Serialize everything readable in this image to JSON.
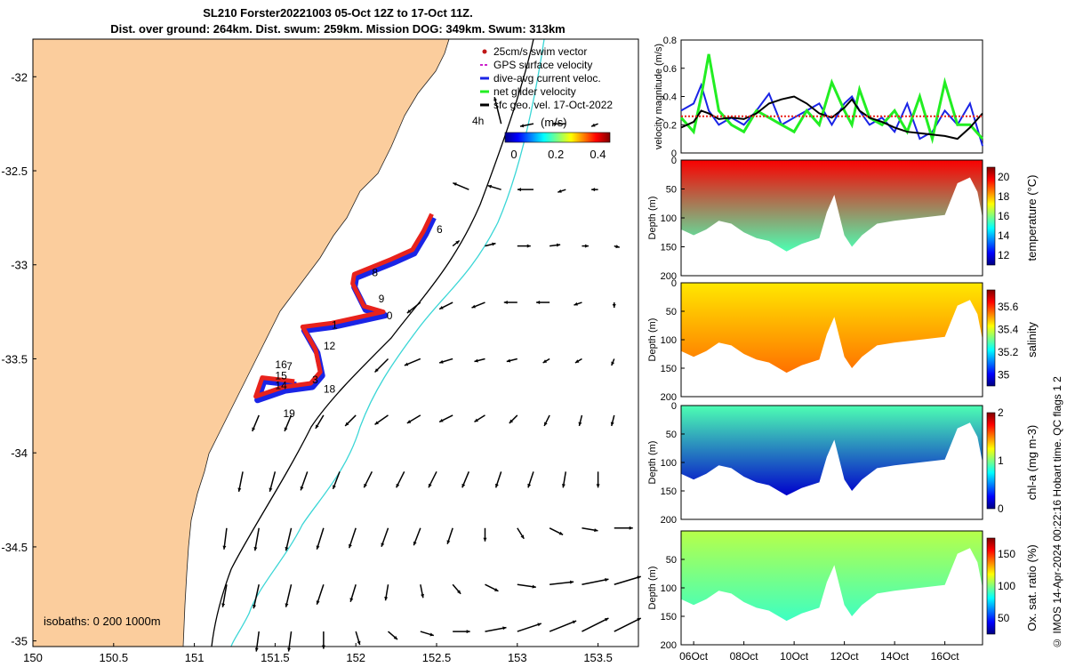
{
  "title_line1": "SL210 Forster20221003 05-Oct 12Z to 17-Oct 11Z.",
  "title_line2": "Dist. over ground: 264km. Dist. swum: 259km. Mission DOG: 349km. Swum: 313km",
  "stamp": "© IMOS 14-Apr-2024 00:22:16 Hobart time. QC flags 1  2",
  "colors": {
    "land": "#fbcd9d",
    "glider_red": "#e8221c",
    "glider_blue": "#1a24e6",
    "isobath": "#000000",
    "cyan": "#3ad6d6",
    "velocity_green": "#22ee22",
    "gps": "#cc22cc"
  },
  "chart_data": [
    {
      "type": "map",
      "xlim": [
        150,
        153.75
      ],
      "ylim": [
        -35.03,
        -31.8
      ],
      "xticks": [
        "150",
        "150.5",
        "151",
        "151.5",
        "152",
        "152.5",
        "153",
        "153.5"
      ],
      "yticks": [
        "-32",
        "-32.5",
        "-33",
        "-33.5",
        "-34",
        "-34.5",
        "-35"
      ],
      "legend": [
        "25cm/s swim vector",
        "GPS surface velocity",
        "dive-avg current veloc.",
        "net glider velocity",
        "sfc geo. vel. 17-Oct-2022"
      ],
      "legend_extra": "4h",
      "colorbar": {
        "label": "(m/s)",
        "ticks": [
          "0",
          "0.2",
          "0.4"
        ],
        "range": [
          0,
          0.5
        ]
      },
      "isobath_label": "isobaths: 0   200   1000m",
      "glider_track_red": [
        [
          152.17,
          -33.25
        ],
        [
          151.85,
          -33.31
        ],
        [
          151.67,
          -33.33
        ],
        [
          151.75,
          -33.45
        ],
        [
          151.78,
          -33.57
        ],
        [
          151.72,
          -33.63
        ],
        [
          151.55,
          -33.65
        ],
        [
          151.38,
          -33.7
        ],
        [
          151.42,
          -33.6
        ],
        [
          151.62,
          -33.62
        ]
      ],
      "glider_track_north_red": [
        [
          152.17,
          -33.25
        ],
        [
          152.05,
          -33.22
        ],
        [
          151.98,
          -33.1
        ],
        [
          151.99,
          -33.05
        ],
        [
          152.22,
          -32.97
        ],
        [
          152.35,
          -32.92
        ],
        [
          152.42,
          -32.82
        ],
        [
          152.47,
          -32.73
        ]
      ],
      "day_labels": [
        {
          "t": "6",
          "x": 152.5,
          "y": -32.83
        },
        {
          "t": "8",
          "x": 152.1,
          "y": -33.06
        },
        {
          "t": "9",
          "x": 152.14,
          "y": -33.2
        },
        {
          "t": "0",
          "x": 152.19,
          "y": -33.29
        },
        {
          "t": "1",
          "x": 151.85,
          "y": -33.34
        },
        {
          "t": "12",
          "x": 151.8,
          "y": -33.45
        },
        {
          "t": "16",
          "x": 151.5,
          "y": -33.55
        },
        {
          "t": "7",
          "x": 151.57,
          "y": -33.56
        },
        {
          "t": "15",
          "x": 151.5,
          "y": -33.61
        },
        {
          "t": "3",
          "x": 151.73,
          "y": -33.63
        },
        {
          "t": "14",
          "x": 151.5,
          "y": -33.66
        },
        {
          "t": "18",
          "x": 151.8,
          "y": -33.68
        },
        {
          "t": "19",
          "x": 151.55,
          "y": -33.81
        }
      ],
      "velocity_arrows": [
        {
          "lon": 152.9,
          "lat": -32.25,
          "u": -0.05,
          "v": 0.2
        },
        {
          "lon": 153.1,
          "lat": -32.25,
          "u": -0.1,
          "v": -0.02
        },
        {
          "lon": 153.3,
          "lat": -32.25,
          "u": -0.1,
          "v": 0.0
        },
        {
          "lon": 153.5,
          "lat": -32.25,
          "u": -0.05,
          "v": -0.02
        },
        {
          "lon": 152.7,
          "lat": -32.6,
          "u": -0.12,
          "v": 0.05
        },
        {
          "lon": 152.9,
          "lat": -32.6,
          "u": -0.1,
          "v": 0.03
        },
        {
          "lon": 153.1,
          "lat": -32.6,
          "u": -0.12,
          "v": 0.0
        },
        {
          "lon": 153.3,
          "lat": -32.6,
          "u": -0.06,
          "v": -0.02
        },
        {
          "lon": 153.5,
          "lat": -32.6,
          "u": -0.05,
          "v": 0.0
        },
        {
          "lon": 152.6,
          "lat": -32.9,
          "u": 0.05,
          "v": 0.04
        },
        {
          "lon": 152.8,
          "lat": -32.9,
          "u": 0.08,
          "v": 0.02
        },
        {
          "lon": 153.0,
          "lat": -32.9,
          "u": 0.1,
          "v": 0.0
        },
        {
          "lon": 153.2,
          "lat": -32.9,
          "u": 0.08,
          "v": 0.01
        },
        {
          "lon": 153.4,
          "lat": -32.9,
          "u": 0.05,
          "v": 0.0
        },
        {
          "lon": 153.6,
          "lat": -32.9,
          "u": 0.04,
          "v": -0.01
        },
        {
          "lon": 152.4,
          "lat": -33.2,
          "u": -0.1,
          "v": -0.08
        },
        {
          "lon": 152.6,
          "lat": -33.2,
          "u": -0.1,
          "v": -0.05
        },
        {
          "lon": 152.8,
          "lat": -33.2,
          "u": -0.1,
          "v": -0.04
        },
        {
          "lon": 153.0,
          "lat": -33.2,
          "u": -0.1,
          "v": 0.0
        },
        {
          "lon": 153.2,
          "lat": -33.2,
          "u": -0.1,
          "v": 0.0
        },
        {
          "lon": 153.4,
          "lat": -33.2,
          "u": -0.06,
          "v": -0.02
        },
        {
          "lon": 153.6,
          "lat": -33.2,
          "u": 0.0,
          "v": -0.04
        },
        {
          "lon": 152.2,
          "lat": -33.5,
          "u": -0.1,
          "v": -0.1
        },
        {
          "lon": 152.4,
          "lat": -33.5,
          "u": -0.12,
          "v": -0.05
        },
        {
          "lon": 152.6,
          "lat": -33.5,
          "u": -0.1,
          "v": -0.03
        },
        {
          "lon": 152.8,
          "lat": -33.5,
          "u": -0.08,
          "v": -0.02
        },
        {
          "lon": 153.0,
          "lat": -33.5,
          "u": -0.08,
          "v": -0.02
        },
        {
          "lon": 153.2,
          "lat": -33.5,
          "u": -0.05,
          "v": -0.03
        },
        {
          "lon": 153.4,
          "lat": -33.5,
          "u": -0.05,
          "v": -0.03
        },
        {
          "lon": 153.6,
          "lat": -33.5,
          "u": -0.02,
          "v": -0.05
        },
        {
          "lon": 151.4,
          "lat": -33.8,
          "u": -0.05,
          "v": -0.12
        },
        {
          "lon": 151.6,
          "lat": -33.8,
          "u": -0.05,
          "v": -0.12
        },
        {
          "lon": 151.8,
          "lat": -33.8,
          "u": -0.06,
          "v": -0.1
        },
        {
          "lon": 152.0,
          "lat": -33.8,
          "u": -0.08,
          "v": -0.08
        },
        {
          "lon": 152.2,
          "lat": -33.8,
          "u": -0.1,
          "v": -0.07
        },
        {
          "lon": 152.4,
          "lat": -33.8,
          "u": -0.1,
          "v": -0.06
        },
        {
          "lon": 152.6,
          "lat": -33.8,
          "u": -0.1,
          "v": -0.05
        },
        {
          "lon": 152.8,
          "lat": -33.8,
          "u": -0.08,
          "v": -0.05
        },
        {
          "lon": 153.0,
          "lat": -33.8,
          "u": -0.06,
          "v": -0.06
        },
        {
          "lon": 153.2,
          "lat": -33.8,
          "u": -0.04,
          "v": -0.08
        },
        {
          "lon": 153.4,
          "lat": -33.8,
          "u": -0.02,
          "v": -0.08
        },
        {
          "lon": 153.6,
          "lat": -33.8,
          "u": -0.02,
          "v": -0.08
        },
        {
          "lon": 151.3,
          "lat": -34.1,
          "u": -0.03,
          "v": -0.15
        },
        {
          "lon": 151.5,
          "lat": -34.1,
          "u": -0.04,
          "v": -0.15
        },
        {
          "lon": 151.7,
          "lat": -34.1,
          "u": -0.05,
          "v": -0.14
        },
        {
          "lon": 151.9,
          "lat": -34.1,
          "u": -0.05,
          "v": -0.13
        },
        {
          "lon": 152.1,
          "lat": -34.1,
          "u": -0.06,
          "v": -0.12
        },
        {
          "lon": 152.3,
          "lat": -34.1,
          "u": -0.06,
          "v": -0.12
        },
        {
          "lon": 152.5,
          "lat": -34.1,
          "u": -0.06,
          "v": -0.12
        },
        {
          "lon": 152.7,
          "lat": -34.1,
          "u": -0.05,
          "v": -0.12
        },
        {
          "lon": 152.9,
          "lat": -34.1,
          "u": -0.04,
          "v": -0.12
        },
        {
          "lon": 153.1,
          "lat": -34.1,
          "u": -0.04,
          "v": -0.12
        },
        {
          "lon": 153.3,
          "lat": -34.1,
          "u": -0.02,
          "v": -0.12
        },
        {
          "lon": 153.5,
          "lat": -34.1,
          "u": 0.0,
          "v": -0.12
        },
        {
          "lon": 151.2,
          "lat": -34.4,
          "u": -0.02,
          "v": -0.16
        },
        {
          "lon": 151.4,
          "lat": -34.4,
          "u": -0.03,
          "v": -0.17
        },
        {
          "lon": 151.6,
          "lat": -34.4,
          "u": -0.04,
          "v": -0.17
        },
        {
          "lon": 151.8,
          "lat": -34.4,
          "u": -0.05,
          "v": -0.16
        },
        {
          "lon": 152.0,
          "lat": -34.4,
          "u": -0.05,
          "v": -0.15
        },
        {
          "lon": 152.2,
          "lat": -34.4,
          "u": -0.05,
          "v": -0.14
        },
        {
          "lon": 152.4,
          "lat": -34.4,
          "u": -0.05,
          "v": -0.13
        },
        {
          "lon": 152.6,
          "lat": -34.4,
          "u": -0.04,
          "v": -0.12
        },
        {
          "lon": 152.8,
          "lat": -34.4,
          "u": 0.0,
          "v": -0.1
        },
        {
          "lon": 153.0,
          "lat": -34.4,
          "u": 0.05,
          "v": -0.08
        },
        {
          "lon": 153.2,
          "lat": -34.4,
          "u": 0.1,
          "v": -0.05
        },
        {
          "lon": 153.4,
          "lat": -34.4,
          "u": 0.12,
          "v": -0.02
        },
        {
          "lon": 153.6,
          "lat": -34.4,
          "u": 0.14,
          "v": 0.0
        },
        {
          "lon": 151.2,
          "lat": -34.7,
          "u": -0.03,
          "v": -0.17
        },
        {
          "lon": 151.4,
          "lat": -34.7,
          "u": -0.04,
          "v": -0.18
        },
        {
          "lon": 151.6,
          "lat": -34.7,
          "u": -0.04,
          "v": -0.17
        },
        {
          "lon": 151.8,
          "lat": -34.7,
          "u": -0.05,
          "v": -0.15
        },
        {
          "lon": 152.0,
          "lat": -34.7,
          "u": -0.04,
          "v": -0.13
        },
        {
          "lon": 152.2,
          "lat": -34.7,
          "u": -0.02,
          "v": -0.12
        },
        {
          "lon": 152.4,
          "lat": -34.7,
          "u": 0.02,
          "v": -0.1
        },
        {
          "lon": 152.6,
          "lat": -34.7,
          "u": 0.06,
          "v": -0.07
        },
        {
          "lon": 152.8,
          "lat": -34.7,
          "u": 0.1,
          "v": -0.05
        },
        {
          "lon": 153.0,
          "lat": -34.7,
          "u": 0.14,
          "v": -0.02
        },
        {
          "lon": 153.2,
          "lat": -34.7,
          "u": 0.18,
          "v": 0.02
        },
        {
          "lon": 153.4,
          "lat": -34.7,
          "u": 0.2,
          "v": 0.04
        },
        {
          "lon": 153.6,
          "lat": -34.7,
          "u": 0.2,
          "v": 0.06
        },
        {
          "lon": 151.4,
          "lat": -34.95,
          "u": -0.02,
          "v": -0.15
        },
        {
          "lon": 151.6,
          "lat": -34.95,
          "u": -0.02,
          "v": -0.15
        },
        {
          "lon": 151.8,
          "lat": -34.95,
          "u": 0.0,
          "v": -0.13
        },
        {
          "lon": 152.0,
          "lat": -34.95,
          "u": 0.03,
          "v": -0.1
        },
        {
          "lon": 152.2,
          "lat": -34.95,
          "u": 0.07,
          "v": -0.06
        },
        {
          "lon": 152.4,
          "lat": -34.95,
          "u": 0.1,
          "v": -0.03
        },
        {
          "lon": 152.6,
          "lat": -34.95,
          "u": 0.13,
          "v": 0.0
        },
        {
          "lon": 152.8,
          "lat": -34.95,
          "u": 0.16,
          "v": 0.03
        },
        {
          "lon": 153.0,
          "lat": -34.95,
          "u": 0.18,
          "v": 0.06
        },
        {
          "lon": 153.2,
          "lat": -34.95,
          "u": 0.2,
          "v": 0.08
        },
        {
          "lon": 153.4,
          "lat": -34.95,
          "u": 0.2,
          "v": 0.1
        },
        {
          "lon": 153.6,
          "lat": -34.95,
          "u": 0.2,
          "v": 0.1
        }
      ]
    },
    {
      "type": "line",
      "ylabel": "velocity magnitude (m/s)",
      "ylim": [
        0,
        0.8
      ],
      "yticks": [
        "0",
        "0.2",
        "0.4",
        "0.6",
        "0.8"
      ],
      "x_days": [
        5.5,
        6,
        6.3,
        6.6,
        7,
        7.5,
        8,
        8.5,
        9,
        9.5,
        10,
        10.5,
        11,
        11.5,
        12,
        12.3,
        12.6,
        13,
        13.5,
        14,
        14.5,
        15,
        15.5,
        16,
        16.5,
        17,
        17.5
      ],
      "series": [
        {
          "color": "#1a24e6",
          "values": [
            0.3,
            0.35,
            0.48,
            0.3,
            0.2,
            0.25,
            0.2,
            0.3,
            0.42,
            0.2,
            0.25,
            0.3,
            0.35,
            0.2,
            0.35,
            0.4,
            0.3,
            0.2,
            0.25,
            0.15,
            0.35,
            0.1,
            0.15,
            0.3,
            0.2,
            0.35,
            0.05
          ]
        },
        {
          "color": "#22ee22",
          "values": [
            0.25,
            0.15,
            0.4,
            0.7,
            0.3,
            0.2,
            0.15,
            0.3,
            0.25,
            0.2,
            0.15,
            0.3,
            0.2,
            0.5,
            0.3,
            0.2,
            0.45,
            0.25,
            0.2,
            0.3,
            0.15,
            0.4,
            0.1,
            0.5,
            0.2,
            0.2,
            0.1
          ]
        },
        {
          "color": "#000000",
          "values": [
            0.18,
            0.22,
            0.3,
            0.28,
            0.24,
            0.25,
            0.24,
            0.28,
            0.35,
            0.38,
            0.4,
            0.35,
            0.28,
            0.25,
            0.32,
            0.38,
            0.3,
            0.25,
            0.22,
            0.18,
            0.15,
            0.14,
            0.13,
            0.12,
            0.1,
            0.18,
            0.28
          ]
        },
        {
          "color": "#e8221c",
          "values": [
            0.26,
            0.26,
            0.26,
            0.26,
            0.26,
            0.26,
            0.26,
            0.26,
            0.26,
            0.26,
            0.26,
            0.26,
            0.26,
            0.26,
            0.26,
            0.26,
            0.26,
            0.26,
            0.26,
            0.26,
            0.26,
            0.26,
            0.26,
            0.26,
            0.26,
            0.26,
            0.26
          ]
        }
      ]
    },
    {
      "type": "heatmap",
      "ylabel": "Depth (m)",
      "cblabel": "temperature (°C)",
      "ylim": [
        0,
        200
      ],
      "yticks": [
        "0",
        "50",
        "100",
        "150",
        "200"
      ],
      "cbticks": [
        "12",
        "14",
        "16",
        "18",
        "20"
      ],
      "crange": [
        11,
        21
      ],
      "surface_value": 19.8,
      "bottom_value": 15.5
    },
    {
      "type": "heatmap",
      "ylabel": "Depth (m)",
      "cblabel": "salinity",
      "ylim": [
        0,
        200
      ],
      "yticks": [
        "0",
        "50",
        "100",
        "150",
        "200"
      ],
      "cbticks": [
        "35",
        "35.2",
        "35.4",
        "35.6"
      ],
      "crange": [
        34.9,
        35.75
      ],
      "surface_value": 35.45,
      "bottom_value": 35.55
    },
    {
      "type": "heatmap",
      "ylabel": "Depth (m)",
      "cblabel": "chl-a (mg m-3)",
      "ylim": [
        0,
        200
      ],
      "yticks": [
        "0",
        "50",
        "100",
        "150",
        "200"
      ],
      "cbticks": [
        "0",
        "1",
        "2"
      ],
      "crange": [
        0,
        2
      ],
      "surface_value": 0.9,
      "bottom_value": 0.15
    },
    {
      "type": "heatmap",
      "ylabel": "Depth (m)",
      "cblabel": "Ox. sat. ratio (%)",
      "ylim": [
        0,
        200
      ],
      "yticks": [
        "50",
        "100",
        "150",
        "200"
      ],
      "cbticks": [
        "50",
        "100",
        "150"
      ],
      "crange": [
        25,
        175
      ],
      "surface_value": 108,
      "bottom_value": 90
    }
  ],
  "time_axis": {
    "ticks": [
      "06Oct",
      "08Oct",
      "10Oct",
      "12Oct",
      "14Oct",
      "16Oct"
    ],
    "tick_days": [
      6,
      8,
      10,
      12,
      14,
      16
    ],
    "xlim_days": [
      5.5,
      17.5
    ]
  },
  "section_bottom_depth": [
    {
      "d": 5.5,
      "z": 120
    },
    {
      "d": 6,
      "z": 130
    },
    {
      "d": 6.5,
      "z": 120
    },
    {
      "d": 7,
      "z": 105
    },
    {
      "d": 7.5,
      "z": 110
    },
    {
      "d": 8,
      "z": 125
    },
    {
      "d": 8.5,
      "z": 135
    },
    {
      "d": 9,
      "z": 140
    },
    {
      "d": 9.7,
      "z": 158
    },
    {
      "d": 10.3,
      "z": 145
    },
    {
      "d": 11,
      "z": 135
    },
    {
      "d": 11.3,
      "z": 90
    },
    {
      "d": 11.6,
      "z": 60
    },
    {
      "d": 12,
      "z": 130
    },
    {
      "d": 12.3,
      "z": 150
    },
    {
      "d": 12.7,
      "z": 130
    },
    {
      "d": 13.3,
      "z": 110
    },
    {
      "d": 14,
      "z": 105
    },
    {
      "d": 15,
      "z": 100
    },
    {
      "d": 16,
      "z": 95
    },
    {
      "d": 16.5,
      "z": 40
    },
    {
      "d": 17,
      "z": 30
    },
    {
      "d": 17.3,
      "z": 55
    },
    {
      "d": 17.5,
      "z": 100
    }
  ]
}
